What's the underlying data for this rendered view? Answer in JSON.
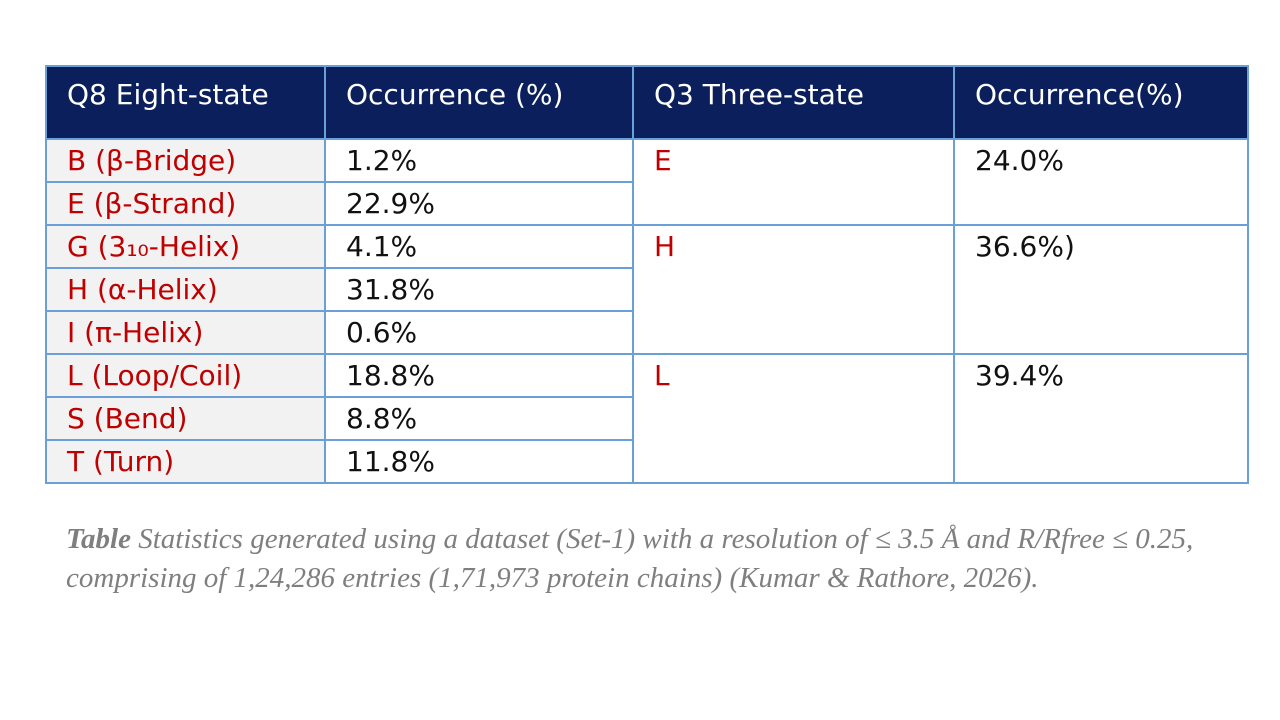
{
  "table": {
    "header": [
      "Q8  Eight-state",
      "Occurrence (%)",
      "Q3  Three-state",
      "Occurrence(%)"
    ],
    "groups": [
      {
        "state": "E",
        "occurrence": "24.0%",
        "rows": [
          [
            "B (β-Bridge)",
            "1.2%"
          ],
          [
            "E (β-Strand)",
            "22.9%"
          ]
        ]
      },
      {
        "state": "H",
        "occurrence": "36.6%)",
        "rows": [
          [
            "G (3₁₀-Helix)",
            "4.1%"
          ],
          [
            "H (α-Helix)",
            "31.8%"
          ],
          [
            "I (π-Helix)",
            "0.6%"
          ]
        ]
      },
      {
        "state": "L",
        "occurrence": "39.4%",
        "rows": [
          [
            "L (Loop/Coil)",
            "18.8%"
          ],
          [
            "S (Bend)",
            "8.8%"
          ],
          [
            "T (Turn)",
            "11.8%"
          ]
        ]
      }
    ]
  },
  "caption": {
    "label": "Table",
    "text": " Statistics generated using a dataset (Set-1) with a resolution of ≤ 3.5 Å and R/Rfree ≤ 0.25, comprising of 1,24,286 entries (1,71,973 protein chains) (Kumar & Rathore, 2026)."
  }
}
